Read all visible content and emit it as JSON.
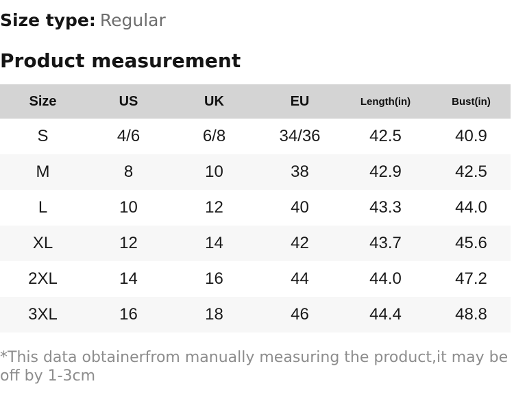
{
  "page": {
    "size_type_label": "Size type:",
    "size_type_value": "Regular",
    "section_title": "Product measurement",
    "footnote": "*This data obtainerfrom manually measuring the product,it may be off by 1-3cm"
  },
  "table": {
    "columns": [
      "Size",
      "US",
      "UK",
      "EU",
      "Length(in)",
      "Bust(in)"
    ],
    "rows": [
      [
        "S",
        "4/6",
        "6/8",
        "34/36",
        "42.5",
        "40.9"
      ],
      [
        "M",
        "8",
        "10",
        "38",
        "42.9",
        "42.5"
      ],
      [
        "L",
        "10",
        "12",
        "40",
        "43.3",
        "44.0"
      ],
      [
        "XL",
        "12",
        "14",
        "42",
        "43.7",
        "45.6"
      ],
      [
        "2XL",
        "14",
        "16",
        "44",
        "44.0",
        "47.2"
      ],
      [
        "3XL",
        "16",
        "18",
        "46",
        "44.4",
        "48.8"
      ]
    ]
  },
  "colors": {
    "header_bg": "#d4d4d4",
    "row_alt_bg": "#f7f7f7",
    "text": "#1a1a1a",
    "size_type_value": "#6e6e6e",
    "footnote": "#8d8d8d"
  }
}
